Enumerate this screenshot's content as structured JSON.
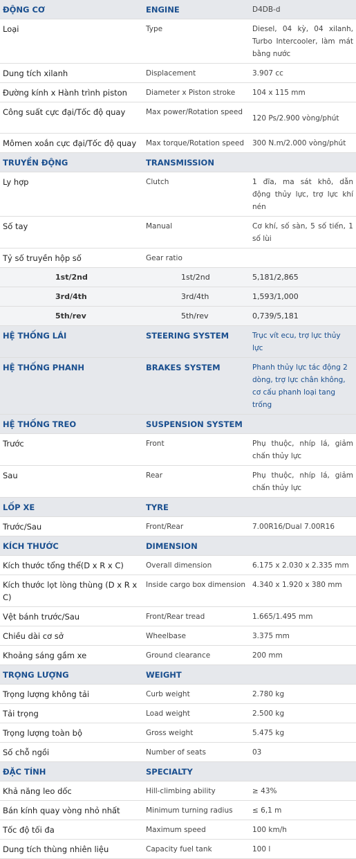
{
  "rows": [
    {
      "kind": "hdr",
      "plain": true,
      "vn": "ĐỘNG CƠ",
      "en": "ENGINE",
      "val": "D4DB-d"
    },
    {
      "kind": "row",
      "h": 63,
      "vn": "Loại",
      "en": "Type",
      "val": "Diesel, 04 kỳ, 04 xilanh, Turbo Intercooler, làm mát bằng nước"
    },
    {
      "kind": "row",
      "vn": "Dung tích xilanh",
      "en": "Displacement",
      "val": "3.907 cc"
    },
    {
      "kind": "row",
      "vn": "Đường kính x Hành trình piston",
      "en": "Diameter x Piston stroke",
      "val": "104 x 115 mm"
    },
    {
      "kind": "row",
      "h": 45,
      "vn": "Công suất cực đại/Tốc độ quay",
      "en": "Max power/Rotation speed",
      "val": "120 Ps/2.900 vòng/phút",
      "valTop": 9
    },
    {
      "kind": "row",
      "vn": "Mômen xoắn cực đại/Tốc độ quay",
      "en": "Max torque/Rotation speed",
      "val": "300 N.m/2.000 vòng/phút"
    },
    {
      "kind": "hdr",
      "vn": "TRUYỀN ĐỘNG",
      "en": "TRANSMISSION",
      "val": ""
    },
    {
      "kind": "row",
      "h": 45,
      "vn": "Ly hợp",
      "en": "Clutch",
      "val": "1 đĩa, ma sát khô, dẫn động thủy lực, trợ lực khí nén"
    },
    {
      "kind": "row",
      "h": 45,
      "vn": "Số tay",
      "en": "Manual",
      "val": "Cơ khí, số sàn, 5 số tiến, 1 số lùi"
    },
    {
      "kind": "row",
      "vn": "Tỷ số truyền hộp số",
      "en": "Gear ratio",
      "val": ""
    },
    {
      "kind": "sub",
      "vn": "1st/2nd",
      "en": "1st/2nd",
      "val": "5,181/2,865"
    },
    {
      "kind": "sub",
      "vn": "3rd/4th",
      "en": "3rd/4th",
      "val": "1,593/1,000"
    },
    {
      "kind": "sub",
      "vn": "5th/rev",
      "en": "5th/rev",
      "val": "0,739/5,181"
    },
    {
      "kind": "hdr",
      "vn": "HỆ THỐNG LÁI",
      "en": "STEERING SYSTEM",
      "val": "Trục vít ecu, trợ lực thủy lực"
    },
    {
      "kind": "hdr",
      "h": 63,
      "vn": "HỆ THỐNG PHANH",
      "en": "BRAKES SYSTEM",
      "val": "Phanh thủy lực tác động 2 dòng, trợ lực chân không, cơ cấu phanh loại tang trống"
    },
    {
      "kind": "hdr",
      "vn": "HỆ THỐNG TREO",
      "en": "SUSPENSION SYSTEM",
      "val": ""
    },
    {
      "kind": "row",
      "h": 45,
      "vn": "Trước",
      "en": "Front",
      "val": "Phụ thuộc, nhíp lá, giảm chấn thủy lực"
    },
    {
      "kind": "row",
      "h": 45,
      "vn": "Sau",
      "en": "Rear",
      "val": "Phụ thuộc, nhíp lá, giảm chấn thủy lực"
    },
    {
      "kind": "hdr",
      "vn": "LỐP XE",
      "en": "TYRE",
      "val": ""
    },
    {
      "kind": "row",
      "vn": "Trước/Sau",
      "en": "Front/Rear",
      "val": "7.00R16/Dual 7.00R16"
    },
    {
      "kind": "hdr",
      "vn": "KÍCH THƯỚC",
      "en": "DIMENSION",
      "val": ""
    },
    {
      "kind": "row",
      "vn": "Kích thước tổng thể(D x R x C)",
      "en": "Overall dimension",
      "val": "6.175 x 2.030 x 2.335 mm"
    },
    {
      "kind": "row",
      "h": 45,
      "vn": "Kích thước lọt lòng thùng (D x R x C)",
      "en": "Inside cargo box dimension",
      "val": "4.340 x 1.920 x 380 mm"
    },
    {
      "kind": "row",
      "vn": "Vệt bánh trước/Sau",
      "en": "Front/Rear tread",
      "val": "1.665/1.495 mm"
    },
    {
      "kind": "row",
      "vn": "Chiều dài cơ sở",
      "en": "Wheelbase",
      "val": "3.375 mm"
    },
    {
      "kind": "row",
      "vn": "Khoảng sáng gầm xe",
      "en": "Ground clearance",
      "val": "200 mm"
    },
    {
      "kind": "hdr",
      "vn": "TRỌNG LƯỢNG",
      "en": "WEIGHT",
      "val": ""
    },
    {
      "kind": "row",
      "vn": "Trọng lượng không tải",
      "en": "Curb weight",
      "val": "2.780 kg"
    },
    {
      "kind": "row",
      "vn": "Tải trọng",
      "en": "Load weight",
      "val": "2.500 kg"
    },
    {
      "kind": "row",
      "vn": "Trọng lượng toàn bộ",
      "en": "Gross weight",
      "val": "5.475 kg"
    },
    {
      "kind": "row",
      "vn": "Số chỗ ngồi",
      "en": "Number of seats",
      "val": "03"
    },
    {
      "kind": "hdr",
      "vn": "ĐẶC TÍNH",
      "en": "SPECIALTY",
      "val": ""
    },
    {
      "kind": "row",
      "vn": "Khả năng leo dốc",
      "en": "Hill-climbing ability",
      "val": "≥ 43%"
    },
    {
      "kind": "row",
      "vn": "Bán kính quay vòng nhỏ nhất",
      "en": "Minimum turning radius",
      "val": "≤ 6,1 m"
    },
    {
      "kind": "row",
      "vn": "Tốc độ tối đa",
      "en": "Maximum speed",
      "val": "100 km/h"
    },
    {
      "kind": "row",
      "vn": "Dung tích thùng nhiên liệu",
      "en": "Capacity fuel tank",
      "val": "100 l"
    }
  ]
}
